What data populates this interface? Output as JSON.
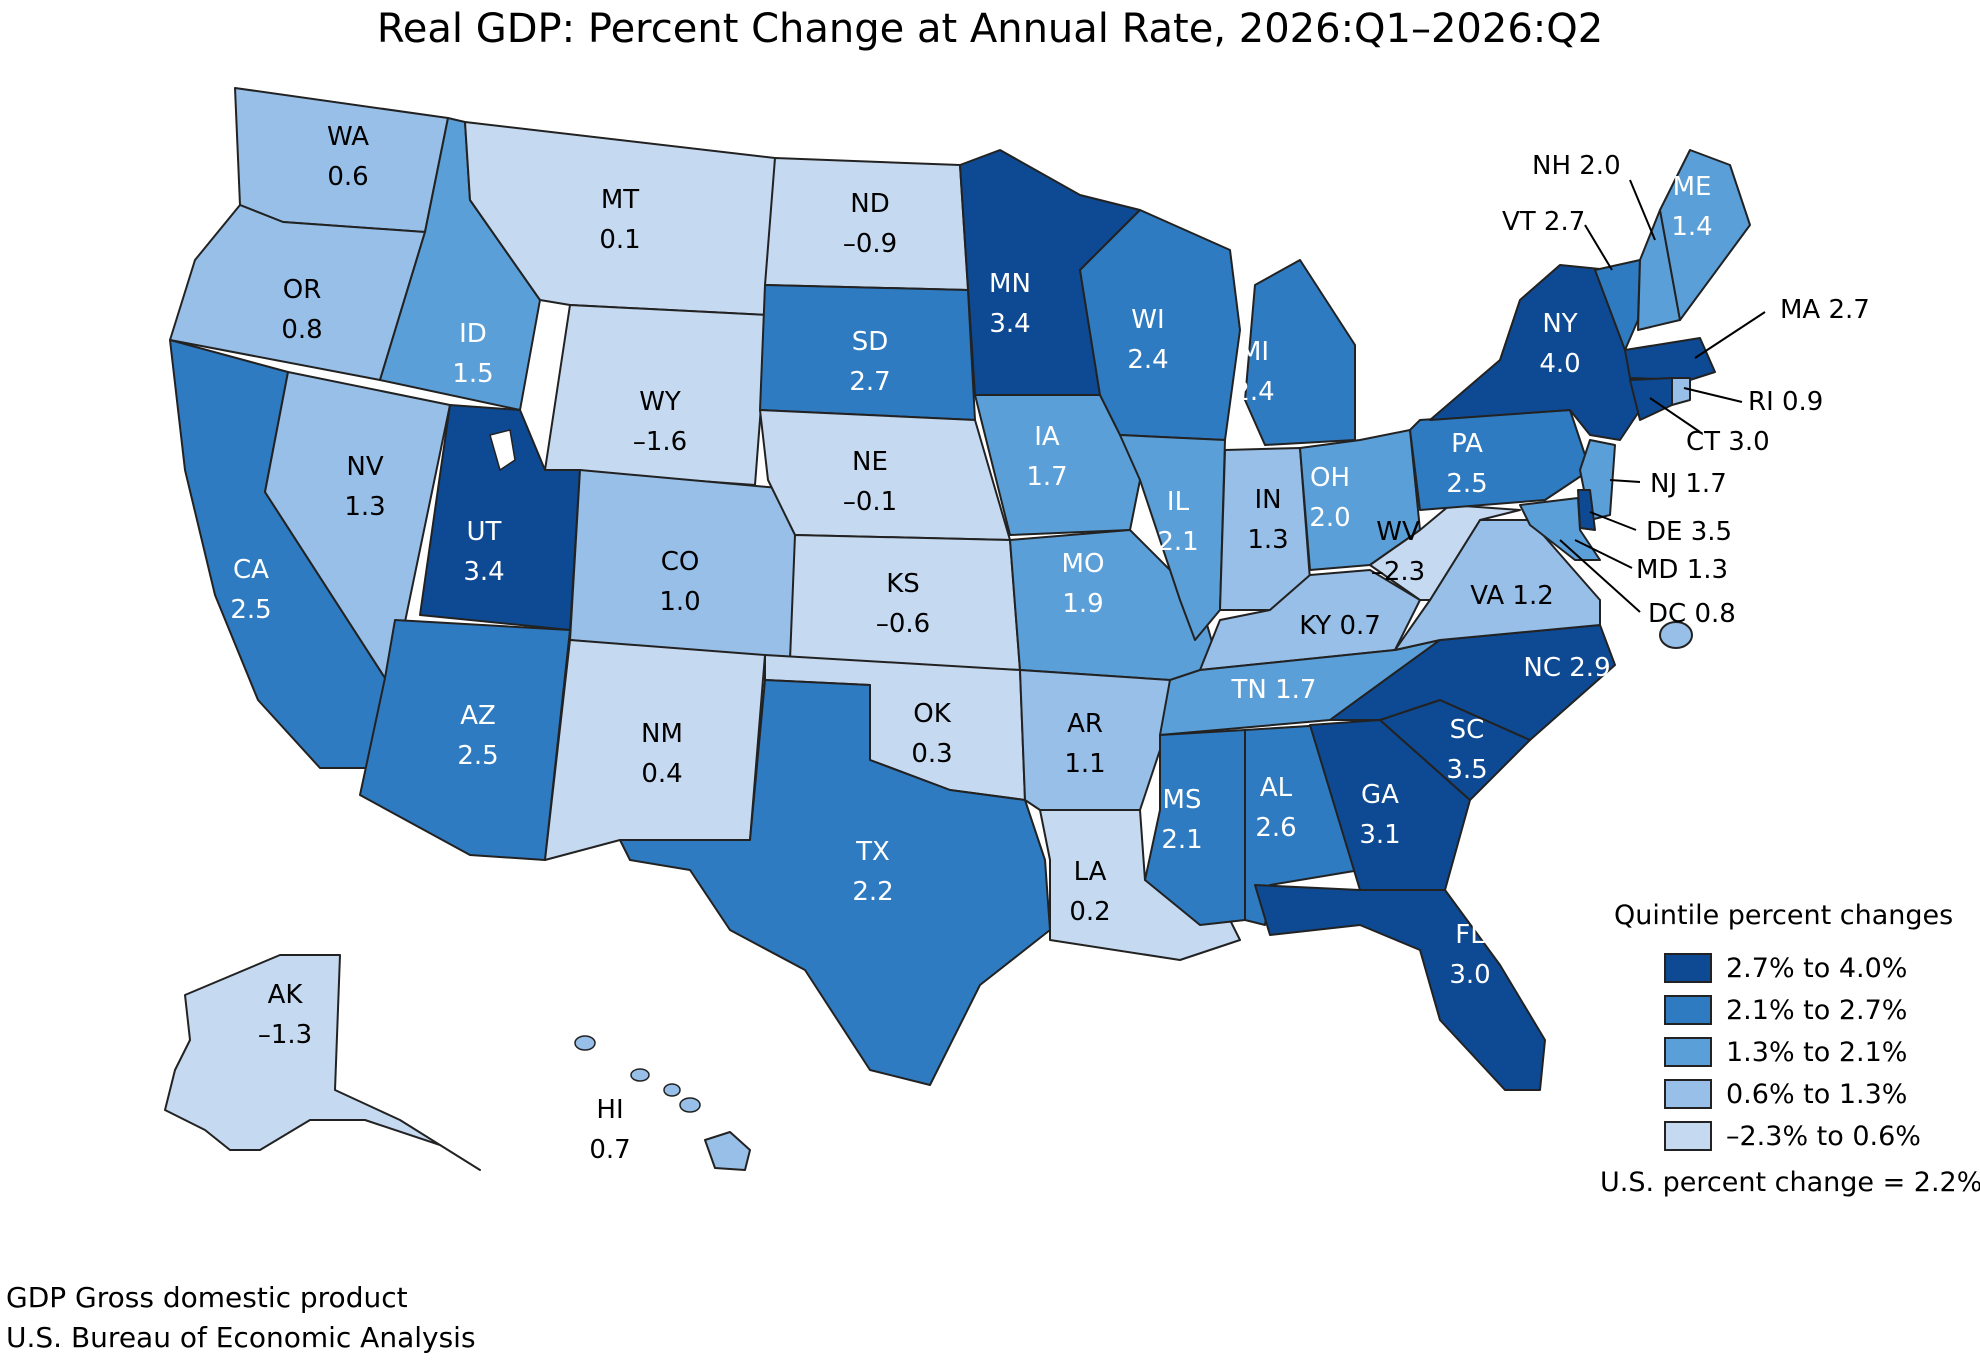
{
  "title": "Real GDP: Percent Change at Annual Rate, 2026:Q1–2026:Q2",
  "colors": {
    "q1": "#0e4a93",
    "q2": "#2f7bc1",
    "q3": "#5b9fd8",
    "q4": "#97bfe8",
    "q5": "#c5d9f1"
  },
  "states": [
    {
      "abbr": "WA",
      "value": "0.6",
      "q": "q4"
    },
    {
      "abbr": "OR",
      "value": "0.8",
      "q": "q4"
    },
    {
      "abbr": "CA",
      "value": "2.5",
      "q": "q2"
    },
    {
      "abbr": "NV",
      "value": "1.3",
      "q": "q4"
    },
    {
      "abbr": "ID",
      "value": "1.5",
      "q": "q3"
    },
    {
      "abbr": "MT",
      "value": "0.1",
      "q": "q5"
    },
    {
      "abbr": "WY",
      "value": "–1.6",
      "q": "q5"
    },
    {
      "abbr": "UT",
      "value": "3.4",
      "q": "q1"
    },
    {
      "abbr": "AZ",
      "value": "2.5",
      "q": "q2"
    },
    {
      "abbr": "CO",
      "value": "1.0",
      "q": "q4"
    },
    {
      "abbr": "NM",
      "value": "0.4",
      "q": "q5"
    },
    {
      "abbr": "ND",
      "value": "–0.9",
      "q": "q5"
    },
    {
      "abbr": "SD",
      "value": "2.7",
      "q": "q2"
    },
    {
      "abbr": "NE",
      "value": "–0.1",
      "q": "q5"
    },
    {
      "abbr": "KS",
      "value": "–0.6",
      "q": "q5"
    },
    {
      "abbr": "OK",
      "value": "0.3",
      "q": "q5"
    },
    {
      "abbr": "TX",
      "value": "2.2",
      "q": "q2"
    },
    {
      "abbr": "MN",
      "value": "3.4",
      "q": "q1"
    },
    {
      "abbr": "IA",
      "value": "1.7",
      "q": "q3"
    },
    {
      "abbr": "MO",
      "value": "1.9",
      "q": "q3"
    },
    {
      "abbr": "AR",
      "value": "1.1",
      "q": "q4"
    },
    {
      "abbr": "LA",
      "value": "0.2",
      "q": "q5"
    },
    {
      "abbr": "WI",
      "value": "2.4",
      "q": "q2"
    },
    {
      "abbr": "IL",
      "value": "2.1",
      "q": "q3"
    },
    {
      "abbr": "MI",
      "value": "2.4",
      "q": "q2"
    },
    {
      "abbr": "IN",
      "value": "1.3",
      "q": "q4"
    },
    {
      "abbr": "OH",
      "value": "2.0",
      "q": "q3"
    },
    {
      "abbr": "KY",
      "value": "0.7",
      "q": "q4"
    },
    {
      "abbr": "TN",
      "value": "1.7",
      "q": "q3"
    },
    {
      "abbr": "MS",
      "value": "2.1",
      "q": "q2"
    },
    {
      "abbr": "AL",
      "value": "2.6",
      "q": "q2"
    },
    {
      "abbr": "GA",
      "value": "3.1",
      "q": "q1"
    },
    {
      "abbr": "FL",
      "value": "3.0",
      "q": "q1"
    },
    {
      "abbr": "SC",
      "value": "3.5",
      "q": "q1"
    },
    {
      "abbr": "NC",
      "value": "2.9",
      "q": "q1"
    },
    {
      "abbr": "VA",
      "value": "1.2",
      "q": "q4"
    },
    {
      "abbr": "WV",
      "value": "–2.3",
      "q": "q5"
    },
    {
      "abbr": "PA",
      "value": "2.5",
      "q": "q2"
    },
    {
      "abbr": "NY",
      "value": "4.0",
      "q": "q1"
    },
    {
      "abbr": "VT",
      "value": "2.7",
      "q": "q2"
    },
    {
      "abbr": "NH",
      "value": "2.0",
      "q": "q3"
    },
    {
      "abbr": "ME",
      "value": "1.4",
      "q": "q3"
    },
    {
      "abbr": "MA",
      "value": "2.7",
      "q": "q1"
    },
    {
      "abbr": "RI",
      "value": "0.9",
      "q": "q4"
    },
    {
      "abbr": "CT",
      "value": "3.0",
      "q": "q1"
    },
    {
      "abbr": "NJ",
      "value": "1.7",
      "q": "q3"
    },
    {
      "abbr": "DE",
      "value": "3.5",
      "q": "q1"
    },
    {
      "abbr": "MD",
      "value": "1.3",
      "q": "q3"
    },
    {
      "abbr": "DC",
      "value": "0.8",
      "q": "q4"
    },
    {
      "abbr": "AK",
      "value": "–1.3",
      "q": "q5"
    },
    {
      "abbr": "HI",
      "value": "0.7",
      "q": "q4"
    }
  ],
  "legend": {
    "title": "Quintile percent changes",
    "items": [
      {
        "label": "2.7% to 4.0%",
        "q": "q1"
      },
      {
        "label": "2.1% to 2.7%",
        "q": "q2"
      },
      {
        "label": "1.3% to 2.1%",
        "q": "q3"
      },
      {
        "label": "0.6% to 1.3%",
        "q": "q4"
      },
      {
        "label": "–2.3% to 0.6%",
        "q": "q5"
      }
    ],
    "us_change": "U.S. percent change = 2.2%"
  },
  "notes": [
    "GDP Gross domestic product",
    "U.S. Bureau of Economic Analysis"
  ]
}
